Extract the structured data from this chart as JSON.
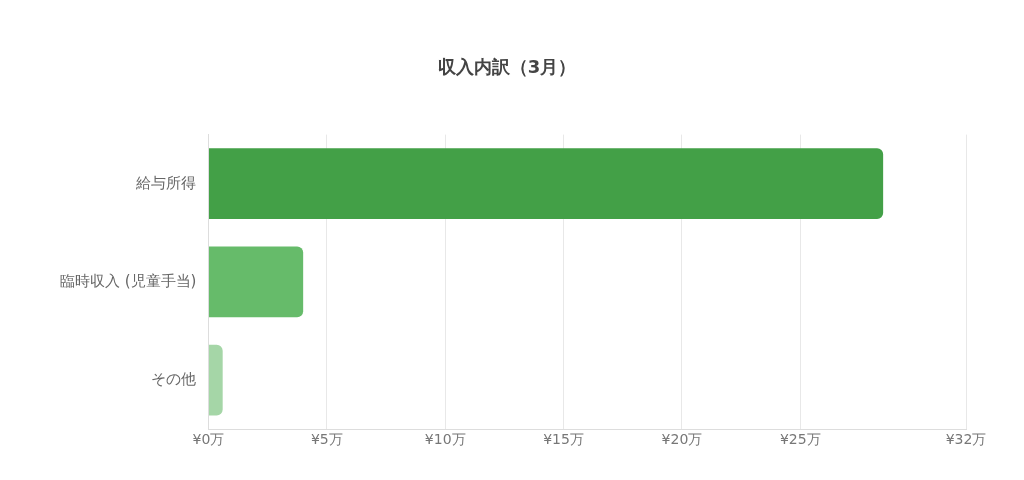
{
  "chart_data": {
    "type": "bar",
    "orientation": "horizontal",
    "title": "収入内訳（3月）",
    "categories": [
      "給与所得",
      "臨時収入 (児童手当)",
      "その他"
    ],
    "values": [
      28.5,
      4,
      0.6
    ],
    "colors": [
      "#43a047",
      "#66bb6a",
      "#a5d6a7"
    ],
    "xlim": [
      0,
      32
    ],
    "xticks": [
      {
        "value": 0,
        "label": "¥0万"
      },
      {
        "value": 5,
        "label": "¥5万"
      },
      {
        "value": 10,
        "label": "¥10万"
      },
      {
        "value": 15,
        "label": "¥15万"
      },
      {
        "value": 20,
        "label": "¥20万"
      },
      {
        "value": 25,
        "label": "¥25万"
      },
      {
        "value": 32,
        "label": "¥32万"
      }
    ],
    "grid": "x",
    "legend": false
  }
}
